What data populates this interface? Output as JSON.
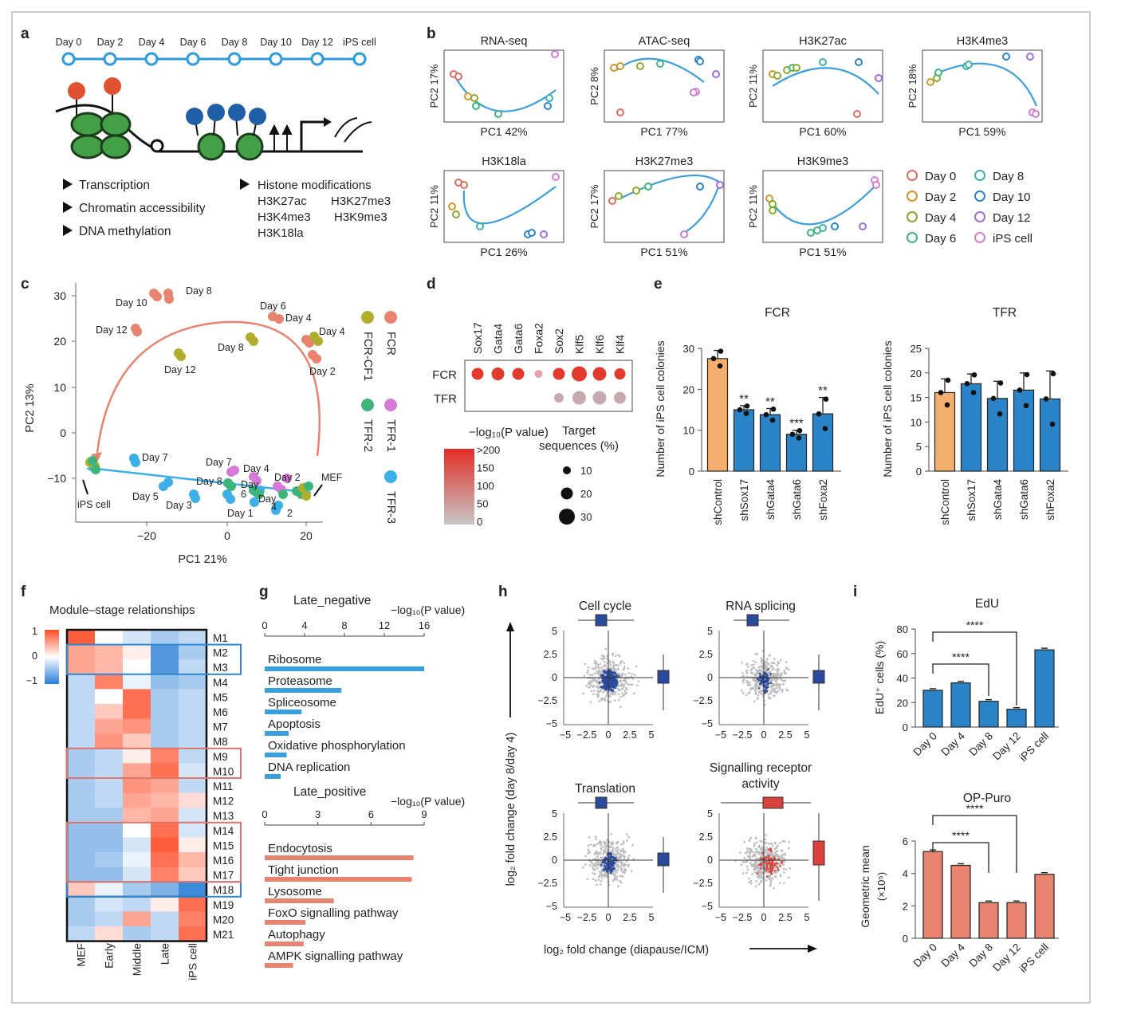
{
  "panel_labels": [
    "a",
    "b",
    "c",
    "d",
    "e",
    "f",
    "g",
    "h",
    "i"
  ],
  "colors": {
    "blue": "#2b83c8",
    "blue_dark": "#1f63a8",
    "orange": "#f4ae6d",
    "red": "#e06b5c",
    "salmon": "#e8836f",
    "olive": "#b0ad2c",
    "green": "#3db57a",
    "pink": "#d67ad8",
    "cyan": "#3aafe8",
    "gray": "#bdbdbd",
    "navy": "#2a4a9e"
  },
  "a": {
    "timeline": [
      "Day 0",
      "Day 2",
      "Day 4",
      "Day 6",
      "Day 8",
      "Day 10",
      "Day 12",
      "iPS cell"
    ],
    "list_left": [
      "Transcription",
      "Chromatin accessibility",
      "DNA methylation"
    ],
    "list_right_title": "Histone modifications",
    "list_right": [
      "H3K27ac",
      "H3K27me3",
      "H3K4me3",
      "H3K9me3",
      "H3K18la"
    ]
  },
  "b": {
    "plots": [
      {
        "title": "RNA-seq",
        "xlabel": "PC1 42%",
        "ylabel": "PC2 17%"
      },
      {
        "title": "ATAC-seq",
        "xlabel": "PC1 77%",
        "ylabel": "PC2 8%"
      },
      {
        "title": "H3K27ac",
        "xlabel": "PC1 60%",
        "ylabel": "PC2 11%"
      },
      {
        "title": "H3K4me3",
        "xlabel": "PC1 59%",
        "ylabel": "PC2 18%"
      },
      {
        "title": "H3K18la",
        "xlabel": "PC1 26%",
        "ylabel": "PC2 11%"
      },
      {
        "title": "H3K27me3",
        "xlabel": "PC1 51%",
        "ylabel": "PC2 17%"
      },
      {
        "title": "H3K9me3",
        "xlabel": "PC1 51%",
        "ylabel": "PC2 11%"
      }
    ],
    "legend": [
      {
        "label": "Day 0",
        "color": "#e06b5c"
      },
      {
        "label": "Day 2",
        "color": "#d0962a"
      },
      {
        "label": "Day 4",
        "color": "#8aab2a"
      },
      {
        "label": "Day 6",
        "color": "#3db57a"
      },
      {
        "label": "Day 8",
        "color": "#3ab0b0"
      },
      {
        "label": "Day 10",
        "color": "#2b83c8"
      },
      {
        "label": "Day 12",
        "color": "#a26be0"
      },
      {
        "label": "iPS cell",
        "color": "#d67ad8"
      }
    ]
  },
  "c": {
    "xlabel": "PC1 21%",
    "ylabel": "PC2 13%",
    "xticks": [
      "−20",
      "0",
      "20"
    ],
    "yticks": [
      "30",
      "20",
      "10",
      "0",
      "−10"
    ],
    "point_labels": [
      {
        "text": "Day 8",
        "color": "#e8836f"
      },
      {
        "text": "Day 10",
        "color": "#e8836f"
      },
      {
        "text": "Day 12",
        "color": "#e8836f"
      },
      {
        "text": "Day 6",
        "color": "#e8836f"
      },
      {
        "text": "Day 4",
        "color": "#e8836f"
      },
      {
        "text": "Day 2",
        "color": "#e8836f"
      },
      {
        "text": "Day 4",
        "color": "#b0ad2c"
      },
      {
        "text": "Day 8",
        "color": "#b0ad2c"
      },
      {
        "text": "Day 12",
        "color": "#b0ad2c"
      },
      {
        "text": "Day 7",
        "color": "#3aafe8"
      },
      {
        "text": "Day 5",
        "color": "#3aafe8"
      },
      {
        "text": "Day 3",
        "color": "#3aafe8"
      },
      {
        "text": "Day 1",
        "color": "#3aafe8"
      },
      {
        "text": "Day 7",
        "color": "#d67ad8"
      },
      {
        "text": "Day 4",
        "color": "#d67ad8"
      },
      {
        "text": "Day 2",
        "color": "#d67ad8"
      },
      {
        "text": "Day 8",
        "color": "#3db57a"
      },
      {
        "text": "Day",
        "color": "#3db57a"
      },
      {
        "text": "6",
        "color": "#3db57a"
      },
      {
        "text": "Day",
        "color": "#3db57a"
      },
      {
        "text": "4",
        "color": "#3db57a"
      },
      {
        "text": "2",
        "color": "#3db57a"
      },
      {
        "text": "iPS cell",
        "color": "#222"
      },
      {
        "text": "MEF",
        "color": "#222"
      }
    ],
    "legend": [
      {
        "label": "FCR",
        "color": "#e8836f"
      },
      {
        "label": "FCR-CF1",
        "color": "#b0ad2c"
      },
      {
        "label": "TFR-1",
        "color": "#d67ad8"
      },
      {
        "label": "TFR-2",
        "color": "#3db57a"
      },
      {
        "label": "TFR-3",
        "color": "#3aafe8"
      }
    ]
  },
  "d": {
    "genes": [
      "Sox17",
      "Gata4",
      "Gata6",
      "Foxa2",
      "Sox2",
      "Klf5",
      "Klf6",
      "Klf4"
    ],
    "rows": [
      "FCR",
      "TFR"
    ],
    "colorbar_title": "−log₁₀(P value)",
    "colorbar_ticks": [
      ">200",
      "150",
      "100",
      "50",
      "0"
    ],
    "size_title_1": "Target",
    "size_title_2": "sequences (%)",
    "size_ticks": [
      "10",
      "20",
      "30"
    ]
  },
  "e": {
    "categories": [
      "shControl",
      "shSox17",
      "shGata4",
      "shGata6",
      "shFoxa2"
    ],
    "ylabel": "Number of iPS cell colonies",
    "fcr": {
      "title": "FCR",
      "values": [
        27.5,
        15,
        13.8,
        9,
        14
      ],
      "errors": [
        2,
        1,
        1.5,
        1,
        4
      ],
      "sig": [
        "",
        "**",
        "**",
        "***",
        "**"
      ],
      "yticks": [
        "30",
        "20",
        "10",
        "0"
      ],
      "ylim": [
        0,
        30
      ]
    },
    "tfr": {
      "title": "TFR",
      "values": [
        16,
        17.8,
        14.8,
        16.5,
        14.7
      ],
      "errors": [
        2.8,
        2,
        3.5,
        3.5,
        5.7
      ],
      "yticks": [
        "25",
        "20",
        "15",
        "10",
        "5",
        "0"
      ],
      "ylim": [
        0,
        25
      ]
    }
  },
  "f": {
    "title": "Module–stage relationships",
    "columns": [
      "MEF",
      "Early",
      "Middle",
      "Late",
      "iPS cell"
    ],
    "modules": [
      "M1",
      "M2",
      "M3",
      "M4",
      "M5",
      "M6",
      "M7",
      "M8",
      "M9",
      "M10",
      "M11",
      "M12",
      "M13",
      "M14",
      "M15",
      "M16",
      "M17",
      "M18",
      "M19",
      "M20",
      "M21"
    ],
    "values": [
      [
        0.9,
        0.0,
        -0.2,
        -0.4,
        -0.3
      ],
      [
        0.5,
        0.4,
        0.1,
        -0.8,
        -0.4
      ],
      [
        0.5,
        0.4,
        0.0,
        -0.8,
        -0.3
      ],
      [
        -0.3,
        0.7,
        -0.1,
        -0.5,
        -0.4
      ],
      [
        -0.3,
        0.0,
        0.8,
        -0.4,
        -0.3
      ],
      [
        -0.3,
        0.3,
        0.8,
        -0.4,
        -0.3
      ],
      [
        -0.3,
        0.5,
        0.6,
        -0.4,
        -0.3
      ],
      [
        -0.3,
        0.6,
        0.3,
        -0.4,
        -0.3
      ],
      [
        -0.4,
        -0.3,
        0.1,
        0.7,
        -0.3
      ],
      [
        -0.4,
        -0.3,
        0.5,
        0.8,
        -0.2
      ],
      [
        -0.4,
        -0.3,
        0.6,
        0.5,
        -0.3
      ],
      [
        -0.4,
        -0.3,
        0.5,
        0.4,
        0.2
      ],
      [
        -0.4,
        -0.4,
        0.4,
        0.5,
        -0.2
      ],
      [
        -0.5,
        -0.5,
        0.0,
        0.8,
        -0.2
      ],
      [
        -0.5,
        -0.5,
        -0.2,
        0.9,
        0.1
      ],
      [
        -0.5,
        -0.4,
        -0.1,
        0.8,
        0.4
      ],
      [
        -0.5,
        -0.5,
        -0.2,
        0.7,
        0.3
      ],
      [
        0.3,
        -0.1,
        -0.4,
        -0.6,
        -0.9
      ],
      [
        -0.4,
        -0.2,
        -0.3,
        0.1,
        0.8
      ],
      [
        -0.4,
        -0.3,
        0.5,
        -0.3,
        0.7
      ],
      [
        -0.3,
        0.2,
        -0.4,
        -0.3,
        0.8
      ]
    ],
    "scale_ticks": [
      "1",
      "0",
      "−1"
    ],
    "blue_boxes": [
      [
        1,
        2
      ],
      [
        17,
        17
      ]
    ],
    "red_boxes": [
      [
        8,
        9
      ],
      [
        13,
        16
      ]
    ]
  },
  "g": {
    "neg_title": "Late_negative",
    "neg_axis_label": "−log₁₀(P value)",
    "neg_ticks": [
      "0",
      "4",
      "8",
      "12",
      "16"
    ],
    "neg_terms": [
      {
        "label": "Ribosome",
        "value": 16
      },
      {
        "label": "Proteasome",
        "value": 7.7
      },
      {
        "label": "Spliceosome",
        "value": 3.7
      },
      {
        "label": "Apoptosis",
        "value": 2.4
      },
      {
        "label": "Oxidative phosphorylation",
        "value": 2.2
      },
      {
        "label": "DNA replication",
        "value": 1.6
      }
    ],
    "pos_title": "Late_positive",
    "pos_axis_label": "−log₁₀(P value)",
    "pos_ticks": [
      "0",
      "3",
      "6",
      "9"
    ],
    "pos_terms": [
      {
        "label": "Endocytosis",
        "value": 8.4
      },
      {
        "label": "Tight junction",
        "value": 8.3
      },
      {
        "label": "Lysosome",
        "value": 3.9
      },
      {
        "label": "FoxO signalling pathway",
        "value": 2.3
      },
      {
        "label": "Autophagy",
        "value": 2.2
      },
      {
        "label": "AMPK signalling pathway",
        "value": 1.6
      }
    ]
  },
  "h": {
    "panels": [
      {
        "title": "Cell cycle",
        "color": "#2a4a9e"
      },
      {
        "title": "RNA splicing",
        "color": "#2a4a9e"
      },
      {
        "title": "Translation",
        "color": "#2a4a9e"
      },
      {
        "title": "Signalling receptor",
        "title2": "activity",
        "color": "#d9413a"
      }
    ],
    "xticks": [
      "−5",
      "−2.5",
      "0",
      "2.5",
      "5"
    ],
    "yticks": [
      "5",
      "2.5",
      "0",
      "−2.5",
      "−5"
    ],
    "ylabel": "log₂ fold change (day 8/day 4)",
    "xlabel": "log₂ fold change (diapause/ICM)"
  },
  "i": {
    "edu": {
      "title": "EdU",
      "ylabel": "EdU⁺ cells (%)",
      "categories": [
        "Day 0",
        "Day 4",
        "Day 8",
        "Day 12",
        "iPS cell"
      ],
      "values": [
        30,
        36,
        21,
        14.5,
        63
      ],
      "yticks": [
        "80",
        "60",
        "40",
        "20",
        "0"
      ],
      "ylim": [
        0,
        80
      ],
      "sig": [
        "****",
        "****"
      ]
    },
    "puro": {
      "title": "OP-Puro",
      "ylabel": "Geometric mean",
      "ylabel2": "(×10⁵)",
      "categories": [
        "Day 0",
        "Day 4",
        "Day 8",
        "Day 12",
        "iPS cell"
      ],
      "values": [
        5.35,
        4.5,
        2.2,
        2.2,
        3.95
      ],
      "yticks": [
        "6",
        "4",
        "2",
        "0"
      ],
      "ylim": [
        0,
        6
      ],
      "sig": [
        "****",
        "****"
      ]
    }
  },
  "chart_data": [
    {
      "type": "bar",
      "title": "FCR",
      "ylabel": "Number of iPS cell colonies",
      "categories": [
        "shControl",
        "shSox17",
        "shGata4",
        "shGata6",
        "shFoxa2"
      ],
      "values": [
        27.5,
        15,
        13.8,
        9,
        14
      ],
      "ylim": [
        0,
        30
      ]
    },
    {
      "type": "bar",
      "title": "TFR",
      "ylabel": "Number of iPS cell colonies",
      "categories": [
        "shControl",
        "shSox17",
        "shGata4",
        "shGata6",
        "shFoxa2"
      ],
      "values": [
        16,
        17.8,
        14.8,
        16.5,
        14.7
      ],
      "ylim": [
        0,
        25
      ]
    },
    {
      "type": "bar",
      "title": "EdU",
      "ylabel": "EdU⁺ cells (%)",
      "categories": [
        "Day 0",
        "Day 4",
        "Day 8",
        "Day 12",
        "iPS cell"
      ],
      "values": [
        30,
        36,
        21,
        14.5,
        63
      ],
      "ylim": [
        0,
        80
      ]
    },
    {
      "type": "bar",
      "title": "OP-Puro",
      "ylabel": "Geometric mean (×10⁵)",
      "categories": [
        "Day 0",
        "Day 4",
        "Day 8",
        "Day 12",
        "iPS cell"
      ],
      "values": [
        5.35,
        4.5,
        2.2,
        2.2,
        3.95
      ],
      "ylim": [
        0,
        6
      ]
    },
    {
      "type": "bar",
      "title": "Late_negative",
      "xlabel": "−log₁₀(P value)",
      "categories": [
        "Ribosome",
        "Proteasome",
        "Spliceosome",
        "Apoptosis",
        "Oxidative phosphorylation",
        "DNA replication"
      ],
      "values": [
        16,
        7.7,
        3.7,
        2.4,
        2.2,
        1.6
      ]
    },
    {
      "type": "bar",
      "title": "Late_positive",
      "xlabel": "−log₁₀(P value)",
      "categories": [
        "Endocytosis",
        "Tight junction",
        "Lysosome",
        "FoxO signalling pathway",
        "Autophagy",
        "AMPK signalling pathway"
      ],
      "values": [
        8.4,
        8.3,
        3.9,
        2.3,
        2.2,
        1.6
      ]
    }
  ]
}
